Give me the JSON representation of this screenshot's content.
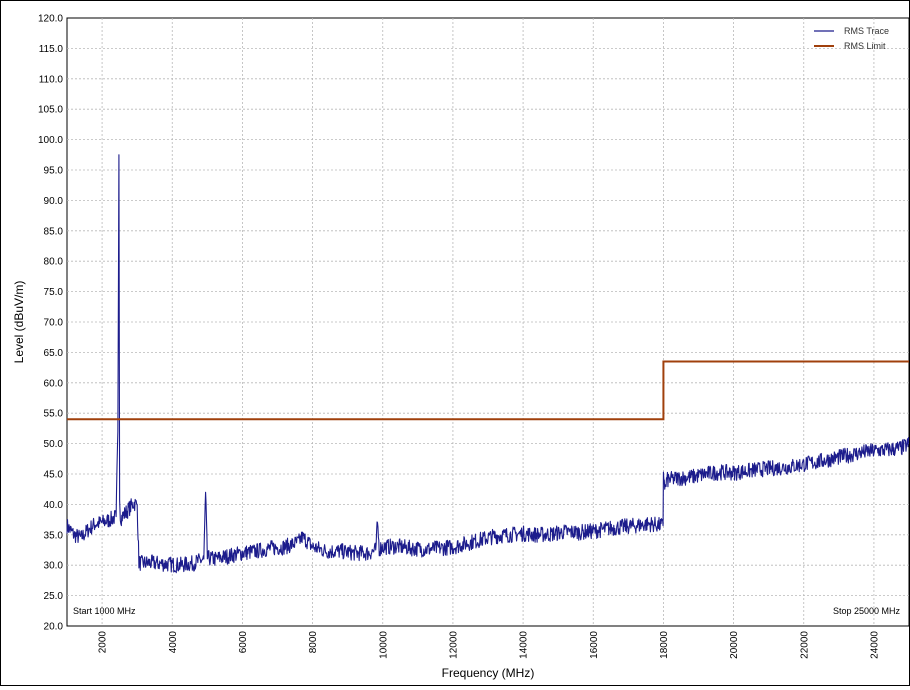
{
  "chart_data": {
    "type": "line",
    "xlabel": "Frequency (MHz)",
    "ylabel": "Level (dBuV/m)",
    "xlim": [
      1000,
      25000
    ],
    "ylim": [
      20.0,
      120.0
    ],
    "x_ticks": [
      2000,
      4000,
      6000,
      8000,
      10000,
      12000,
      14000,
      16000,
      18000,
      20000,
      22000,
      24000
    ],
    "x_tick_labels": [
      "2000",
      "4000",
      "6000",
      "8000",
      "10000",
      "12000",
      "14000",
      "16000",
      "18000",
      "20000",
      "22000",
      "24000"
    ],
    "y_ticks": [
      20,
      25,
      30,
      35,
      40,
      45,
      50,
      55,
      60,
      65,
      70,
      75,
      80,
      85,
      90,
      95,
      100,
      105,
      110,
      115,
      120
    ],
    "y_tick_labels": [
      "20.0",
      "25.0",
      "30.0",
      "35.0",
      "40.0",
      "45.0",
      "50.0",
      "55.0",
      "60.0",
      "65.0",
      "70.0",
      "75.0",
      "80.0",
      "85.0",
      "90.0",
      "95.0",
      "100.0",
      "105.0",
      "110.0",
      "115.0",
      "120.0"
    ],
    "grid": true,
    "legend_position": "top-right",
    "start_label": "Start 1000 MHz",
    "stop_label": "Stop 25000 MHz",
    "series": [
      {
        "name": "RMS Trace",
        "color": "#1c1c8c",
        "x": [
          1000,
          1200,
          1400,
          1600,
          1800,
          2000,
          2200,
          2400,
          2450,
          2480,
          2500,
          2520,
          2550,
          2600,
          2700,
          2800,
          2900,
          3000,
          3050,
          3100,
          3400,
          3800,
          4200,
          4600,
          4900,
          4950,
          5000,
          5200,
          5600,
          6000,
          6400,
          6800,
          7200,
          7600,
          7700,
          7800,
          8000,
          8400,
          8800,
          9200,
          9600,
          9800,
          9850,
          9900,
          10000,
          10400,
          10800,
          11200,
          11600,
          12000,
          12400,
          12800,
          13200,
          13600,
          14000,
          14400,
          14800,
          15200,
          15600,
          16000,
          16400,
          16800,
          17200,
          17600,
          17990,
          18000,
          18050,
          18100,
          18400,
          18800,
          19200,
          19600,
          20000,
          20400,
          20800,
          21200,
          21600,
          22000,
          22400,
          22800,
          23200,
          23600,
          24000,
          24400,
          24800,
          25000
        ],
        "y": [
          36.5,
          35.0,
          34.5,
          35.8,
          36.8,
          37.0,
          37.4,
          38.0,
          52.0,
          97.5,
          42.0,
          38.0,
          37.8,
          38.2,
          38.8,
          39.5,
          40.2,
          40.0,
          30.5,
          30.3,
          30.4,
          30.2,
          30.0,
          30.3,
          31.0,
          42.0,
          31.2,
          31.0,
          31.5,
          32.0,
          32.3,
          32.8,
          33.0,
          33.8,
          34.6,
          34.2,
          33.0,
          32.3,
          32.3,
          32.0,
          32.0,
          32.5,
          37.0,
          32.7,
          33.0,
          33.1,
          32.8,
          32.6,
          32.8,
          33.0,
          33.6,
          34.2,
          34.8,
          35.0,
          35.2,
          35.0,
          35.1,
          35.5,
          35.4,
          35.6,
          36.0,
          36.3,
          36.5,
          36.8,
          36.5,
          45.5,
          42.5,
          44.0,
          44.3,
          44.5,
          45.0,
          45.3,
          45.2,
          45.5,
          45.8,
          46.0,
          46.2,
          46.6,
          47.0,
          47.5,
          48.0,
          48.5,
          48.8,
          49.0,
          49.3,
          50.0
        ]
      },
      {
        "name": "RMS Limit",
        "color": "#a0400c",
        "x": [
          1000,
          18000,
          18000,
          25000
        ],
        "y": [
          54.0,
          54.0,
          63.5,
          63.5
        ]
      }
    ]
  }
}
